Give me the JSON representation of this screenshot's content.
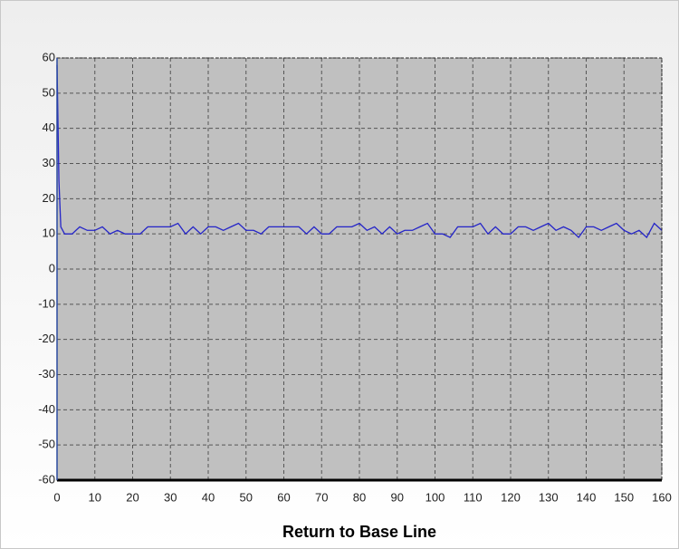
{
  "chart_data": {
    "type": "line",
    "title": "Return to Base Line",
    "x": [
      0,
      0.5,
      1,
      2,
      4,
      6,
      8,
      10,
      12,
      14,
      16,
      18,
      20,
      22,
      24,
      26,
      28,
      30,
      32,
      34,
      36,
      38,
      40,
      42,
      44,
      46,
      48,
      50,
      52,
      54,
      56,
      58,
      60,
      62,
      64,
      66,
      68,
      70,
      72,
      74,
      76,
      78,
      80,
      82,
      84,
      86,
      88,
      90,
      92,
      94,
      96,
      98,
      100,
      102,
      104,
      106,
      108,
      110,
      112,
      114,
      116,
      118,
      120,
      122,
      124,
      126,
      128,
      130,
      132,
      134,
      136,
      138,
      140,
      142,
      144,
      146,
      148,
      150,
      152,
      154,
      156,
      158,
      160
    ],
    "series": [
      {
        "color": "#2424c8",
        "values": [
          58,
          25,
          12,
          10,
          10,
          12,
          11,
          11,
          12,
          10,
          11,
          10,
          10,
          10,
          12,
          12,
          12,
          12,
          13,
          10,
          12,
          10,
          12,
          12,
          11,
          12,
          13,
          11,
          11,
          10,
          12,
          12,
          12,
          12,
          12,
          10,
          12,
          10,
          10,
          12,
          12,
          12,
          13,
          11,
          12,
          10,
          12,
          10,
          11,
          11,
          12,
          13,
          10,
          10,
          9,
          12,
          12,
          12,
          13,
          10,
          12,
          10,
          10,
          12,
          12,
          11,
          12,
          13,
          11,
          12,
          11,
          9,
          12,
          12,
          11,
          12,
          13,
          11,
          10,
          11,
          9,
          13,
          11
        ]
      }
    ],
    "xlim": [
      0,
      160
    ],
    "xticks": [
      0,
      10,
      20,
      30,
      40,
      50,
      60,
      70,
      80,
      90,
      100,
      110,
      120,
      130,
      140,
      150,
      160
    ],
    "ylim": [
      -60,
      60
    ],
    "yticks": [
      -60,
      -50,
      -40,
      -30,
      -20,
      -10,
      0,
      10,
      20,
      30,
      40,
      50,
      60
    ],
    "grid": true
  }
}
